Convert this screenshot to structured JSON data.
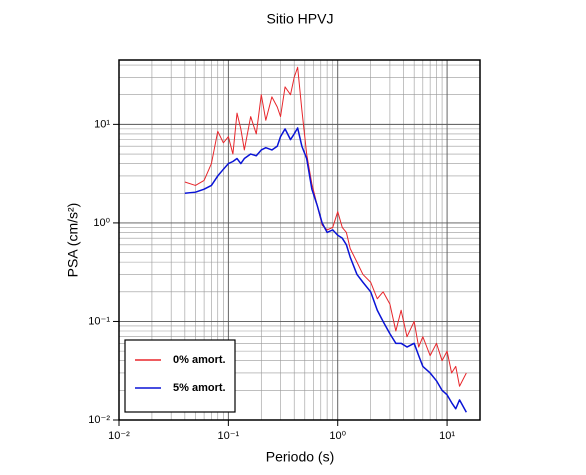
{
  "chart_data": {
    "type": "line",
    "title": "Sitio HPVJ",
    "xlabel": "Periodo (s)",
    "ylabel": "PSA (cm/s²)",
    "xscale": "log",
    "yscale": "log",
    "grid": true,
    "legend": "lower left",
    "xlim": [
      0.01,
      20
    ],
    "ylim": [
      0.01,
      45
    ],
    "xticks": [
      {
        "value": 0.01,
        "label": "10⁻²"
      },
      {
        "value": 0.1,
        "label": "10⁻¹"
      },
      {
        "value": 1,
        "label": "10⁰"
      },
      {
        "value": 10,
        "label": "10¹"
      }
    ],
    "yticks": [
      {
        "value": 0.01,
        "label": "10⁻²"
      },
      {
        "value": 0.1,
        "label": "10⁻¹"
      },
      {
        "value": 1,
        "label": "10⁰"
      },
      {
        "value": 10,
        "label": "10¹"
      }
    ],
    "x": [
      0.04,
      0.05,
      0.06,
      0.07,
      0.08,
      0.09,
      0.1,
      0.11,
      0.12,
      0.13,
      0.14,
      0.16,
      0.18,
      0.2,
      0.22,
      0.25,
      0.28,
      0.3,
      0.33,
      0.37,
      0.4,
      0.43,
      0.47,
      0.52,
      0.58,
      0.65,
      0.72,
      0.8,
      0.9,
      1.0,
      1.1,
      1.2,
      1.3,
      1.5,
      1.7,
      2.0,
      2.3,
      2.6,
      3.0,
      3.4,
      3.8,
      4.3,
      5.0,
      5.5,
      6.0,
      7.0,
      8.0,
      9.0,
      10,
      11,
      12,
      13,
      15
    ],
    "series": [
      {
        "name": "0% amort.",
        "color": "#e8262b",
        "width": 1,
        "values": [
          2.6,
          2.4,
          2.7,
          4.0,
          8.5,
          6.5,
          7.5,
          5.0,
          13,
          9,
          5.5,
          12,
          8,
          20,
          11,
          19,
          15,
          12,
          24,
          20,
          30,
          38,
          14,
          5,
          2.5,
          1.5,
          0.95,
          0.85,
          0.9,
          1.3,
          0.9,
          0.8,
          0.55,
          0.4,
          0.3,
          0.25,
          0.17,
          0.2,
          0.15,
          0.08,
          0.13,
          0.07,
          0.1,
          0.055,
          0.07,
          0.045,
          0.06,
          0.04,
          0.05,
          0.03,
          0.035,
          0.022,
          0.03
        ]
      },
      {
        "name": "5% amort.",
        "color": "#0a14d6",
        "width": 1.5,
        "values": [
          2.0,
          2.05,
          2.2,
          2.4,
          3.0,
          3.5,
          4.0,
          4.2,
          4.5,
          4.0,
          4.5,
          5.0,
          4.8,
          5.5,
          5.8,
          5.5,
          6.0,
          7.5,
          9.0,
          7.0,
          8.0,
          9.2,
          6.0,
          4.5,
          2.2,
          1.5,
          1.0,
          0.8,
          0.85,
          0.75,
          0.7,
          0.6,
          0.45,
          0.3,
          0.25,
          0.2,
          0.13,
          0.1,
          0.075,
          0.06,
          0.06,
          0.055,
          0.06,
          0.045,
          0.035,
          0.03,
          0.025,
          0.02,
          0.018,
          0.015,
          0.013,
          0.016,
          0.012
        ]
      }
    ]
  }
}
